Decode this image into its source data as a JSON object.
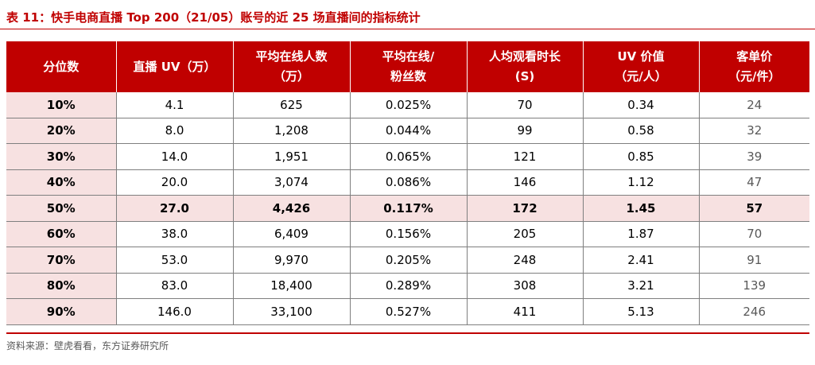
{
  "title": "表  11：快手电商直播 Top 200（21/05）账号的近 25 场直播间的指标统计",
  "table": {
    "headers": [
      [
        "分位数"
      ],
      [
        "直播 UV（万）"
      ],
      [
        "平均在线人数",
        "（万）"
      ],
      [
        "平均在线/",
        "粉丝数"
      ],
      [
        "人均观看时长",
        "(S)"
      ],
      [
        "UV 价值",
        "（元/人）"
      ],
      [
        "客单价",
        "（元/件）"
      ]
    ],
    "rows": [
      [
        "10%",
        "4.1",
        "625",
        "0.025%",
        "70",
        "0.34",
        "24"
      ],
      [
        "20%",
        "8.0",
        "1,208",
        "0.044%",
        "99",
        "0.58",
        "32"
      ],
      [
        "30%",
        "14.0",
        "1,951",
        "0.065%",
        "121",
        "0.85",
        "39"
      ],
      [
        "40%",
        "20.0",
        "3,074",
        "0.086%",
        "146",
        "1.12",
        "47"
      ],
      [
        "50%",
        "27.0",
        "4,426",
        "0.117%",
        "172",
        "1.45",
        "57"
      ],
      [
        "60%",
        "38.0",
        "6,409",
        "0.156%",
        "205",
        "1.87",
        "70"
      ],
      [
        "70%",
        "53.0",
        "9,970",
        "0.205%",
        "248",
        "2.41",
        "91"
      ],
      [
        "80%",
        "83.0",
        "18,400",
        "0.289%",
        "308",
        "3.21",
        "139"
      ],
      [
        "90%",
        "146.0",
        "33,100",
        "0.527%",
        "411",
        "5.13",
        "246"
      ]
    ],
    "highlight_row": "50%"
  },
  "source": "资料来源：壁虎看看，东方证券研究所",
  "colors": {
    "accent": "#c00000",
    "row_highlight": "#f7e1e1",
    "border": "#7f7f7f",
    "muted_text": "#595959"
  }
}
